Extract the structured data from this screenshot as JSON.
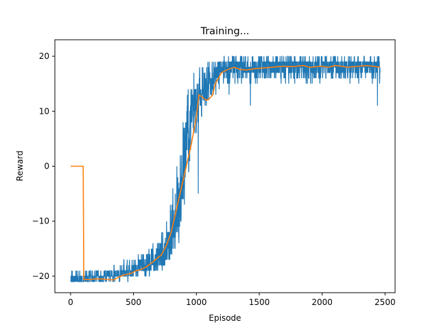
{
  "chart_data": {
    "type": "line",
    "title": "Training...",
    "xlabel": "Episode",
    "ylabel": "Reward",
    "xlim": [
      -125,
      2580
    ],
    "ylim": [
      -23,
      23
    ],
    "xticks": [
      0,
      500,
      1000,
      1500,
      2000,
      2500
    ],
    "yticks": [
      -20,
      -10,
      0,
      10,
      20
    ],
    "grid": false,
    "legend": "none",
    "series": [
      {
        "kind": "episode-reward",
        "color": "#1f77b4",
        "episodes": 2460,
        "envelope": {
          "x": [
            0,
            100,
            200,
            340,
            360,
            500,
            600,
            700,
            750,
            800,
            850,
            900,
            950,
            1000,
            1050,
            1100,
            1150,
            1200,
            1300,
            1500,
            2000,
            2460
          ],
          "mean": [
            -20.5,
            -20.5,
            -20.3,
            -20.2,
            -19.5,
            -19,
            -18,
            -17,
            -16,
            -13,
            -9,
            0,
            8,
            12,
            13,
            14,
            16.5,
            17.5,
            18,
            18.3,
            18.3,
            18.2
          ],
          "low": [
            -21,
            -21,
            -21,
            -21,
            -21,
            -21,
            -21,
            -20,
            -20,
            -19,
            -17,
            -12,
            -3,
            4,
            7,
            10,
            12,
            13,
            14,
            14,
            14,
            14
          ],
          "high": [
            -18,
            -18,
            -18,
            -18,
            -17,
            -15.5,
            -14,
            -12,
            -8,
            -2,
            6,
            14,
            19,
            20,
            21,
            21,
            21,
            21,
            21,
            21,
            21,
            21
          ]
        },
        "spikes": [
          {
            "x": 1015,
            "y": -5
          },
          {
            "x": 1430,
            "y": 11
          },
          {
            "x": 2440,
            "y": 11
          },
          {
            "x": 1260,
            "y": 13
          }
        ]
      },
      {
        "kind": "moving-average",
        "color": "#ff7f0e",
        "x": [
          0,
          99,
          100,
          105,
          150,
          200,
          250,
          300,
          340,
          380,
          420,
          480,
          520,
          560,
          600,
          650,
          700,
          720,
          760,
          800,
          840,
          870,
          900,
          930,
          960,
          1000,
          1020,
          1050,
          1080,
          1100,
          1130,
          1150,
          1200,
          1250,
          1300,
          1350,
          1400,
          1450,
          1500,
          1550,
          1600,
          1650,
          1700,
          1750,
          1800,
          1850,
          1900,
          1950,
          2000,
          2050,
          2100,
          2150,
          2200,
          2250,
          2300,
          2350,
          2400,
          2460
        ],
        "y": [
          0,
          0,
          0,
          -20.6,
          -20.6,
          -20.5,
          -20.5,
          -20.6,
          -20.7,
          -20.2,
          -19.8,
          -19.5,
          -19,
          -18.8,
          -18.3,
          -17.5,
          -16.5,
          -16.2,
          -14.5,
          -12,
          -8,
          -5,
          -2,
          1,
          4,
          9,
          13,
          12.5,
          12,
          12.2,
          13,
          15,
          17,
          17.6,
          18,
          17.6,
          17.5,
          17.7,
          17.8,
          17.9,
          18,
          18.1,
          18.2,
          18.1,
          18.2,
          18.3,
          18,
          18.1,
          18.2,
          18,
          18.3,
          18.2,
          18,
          18.1,
          18.2,
          18.3,
          18.2,
          18
        ]
      }
    ]
  }
}
